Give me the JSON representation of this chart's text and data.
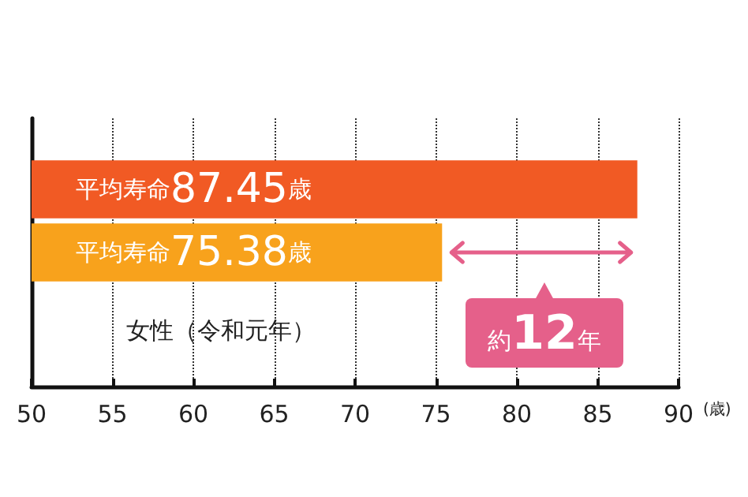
{
  "chart_data": {
    "type": "bar",
    "orientation": "horizontal",
    "categories": [
      null,
      null
    ],
    "values": [
      87.45,
      75.38
    ],
    "colors": [
      "#f15a24",
      "#f8a21c"
    ],
    "value_labels": [
      "平均寿命87.45歳",
      "平均寿命75.38歳"
    ],
    "xlabel": "(歳)",
    "xlim": [
      50,
      90
    ],
    "xticks": [
      50,
      55,
      60,
      65,
      70,
      75,
      80,
      85,
      90
    ],
    "grid": "x",
    "annotations": [
      "女性（令和元年）",
      "約12年"
    ]
  }
}
